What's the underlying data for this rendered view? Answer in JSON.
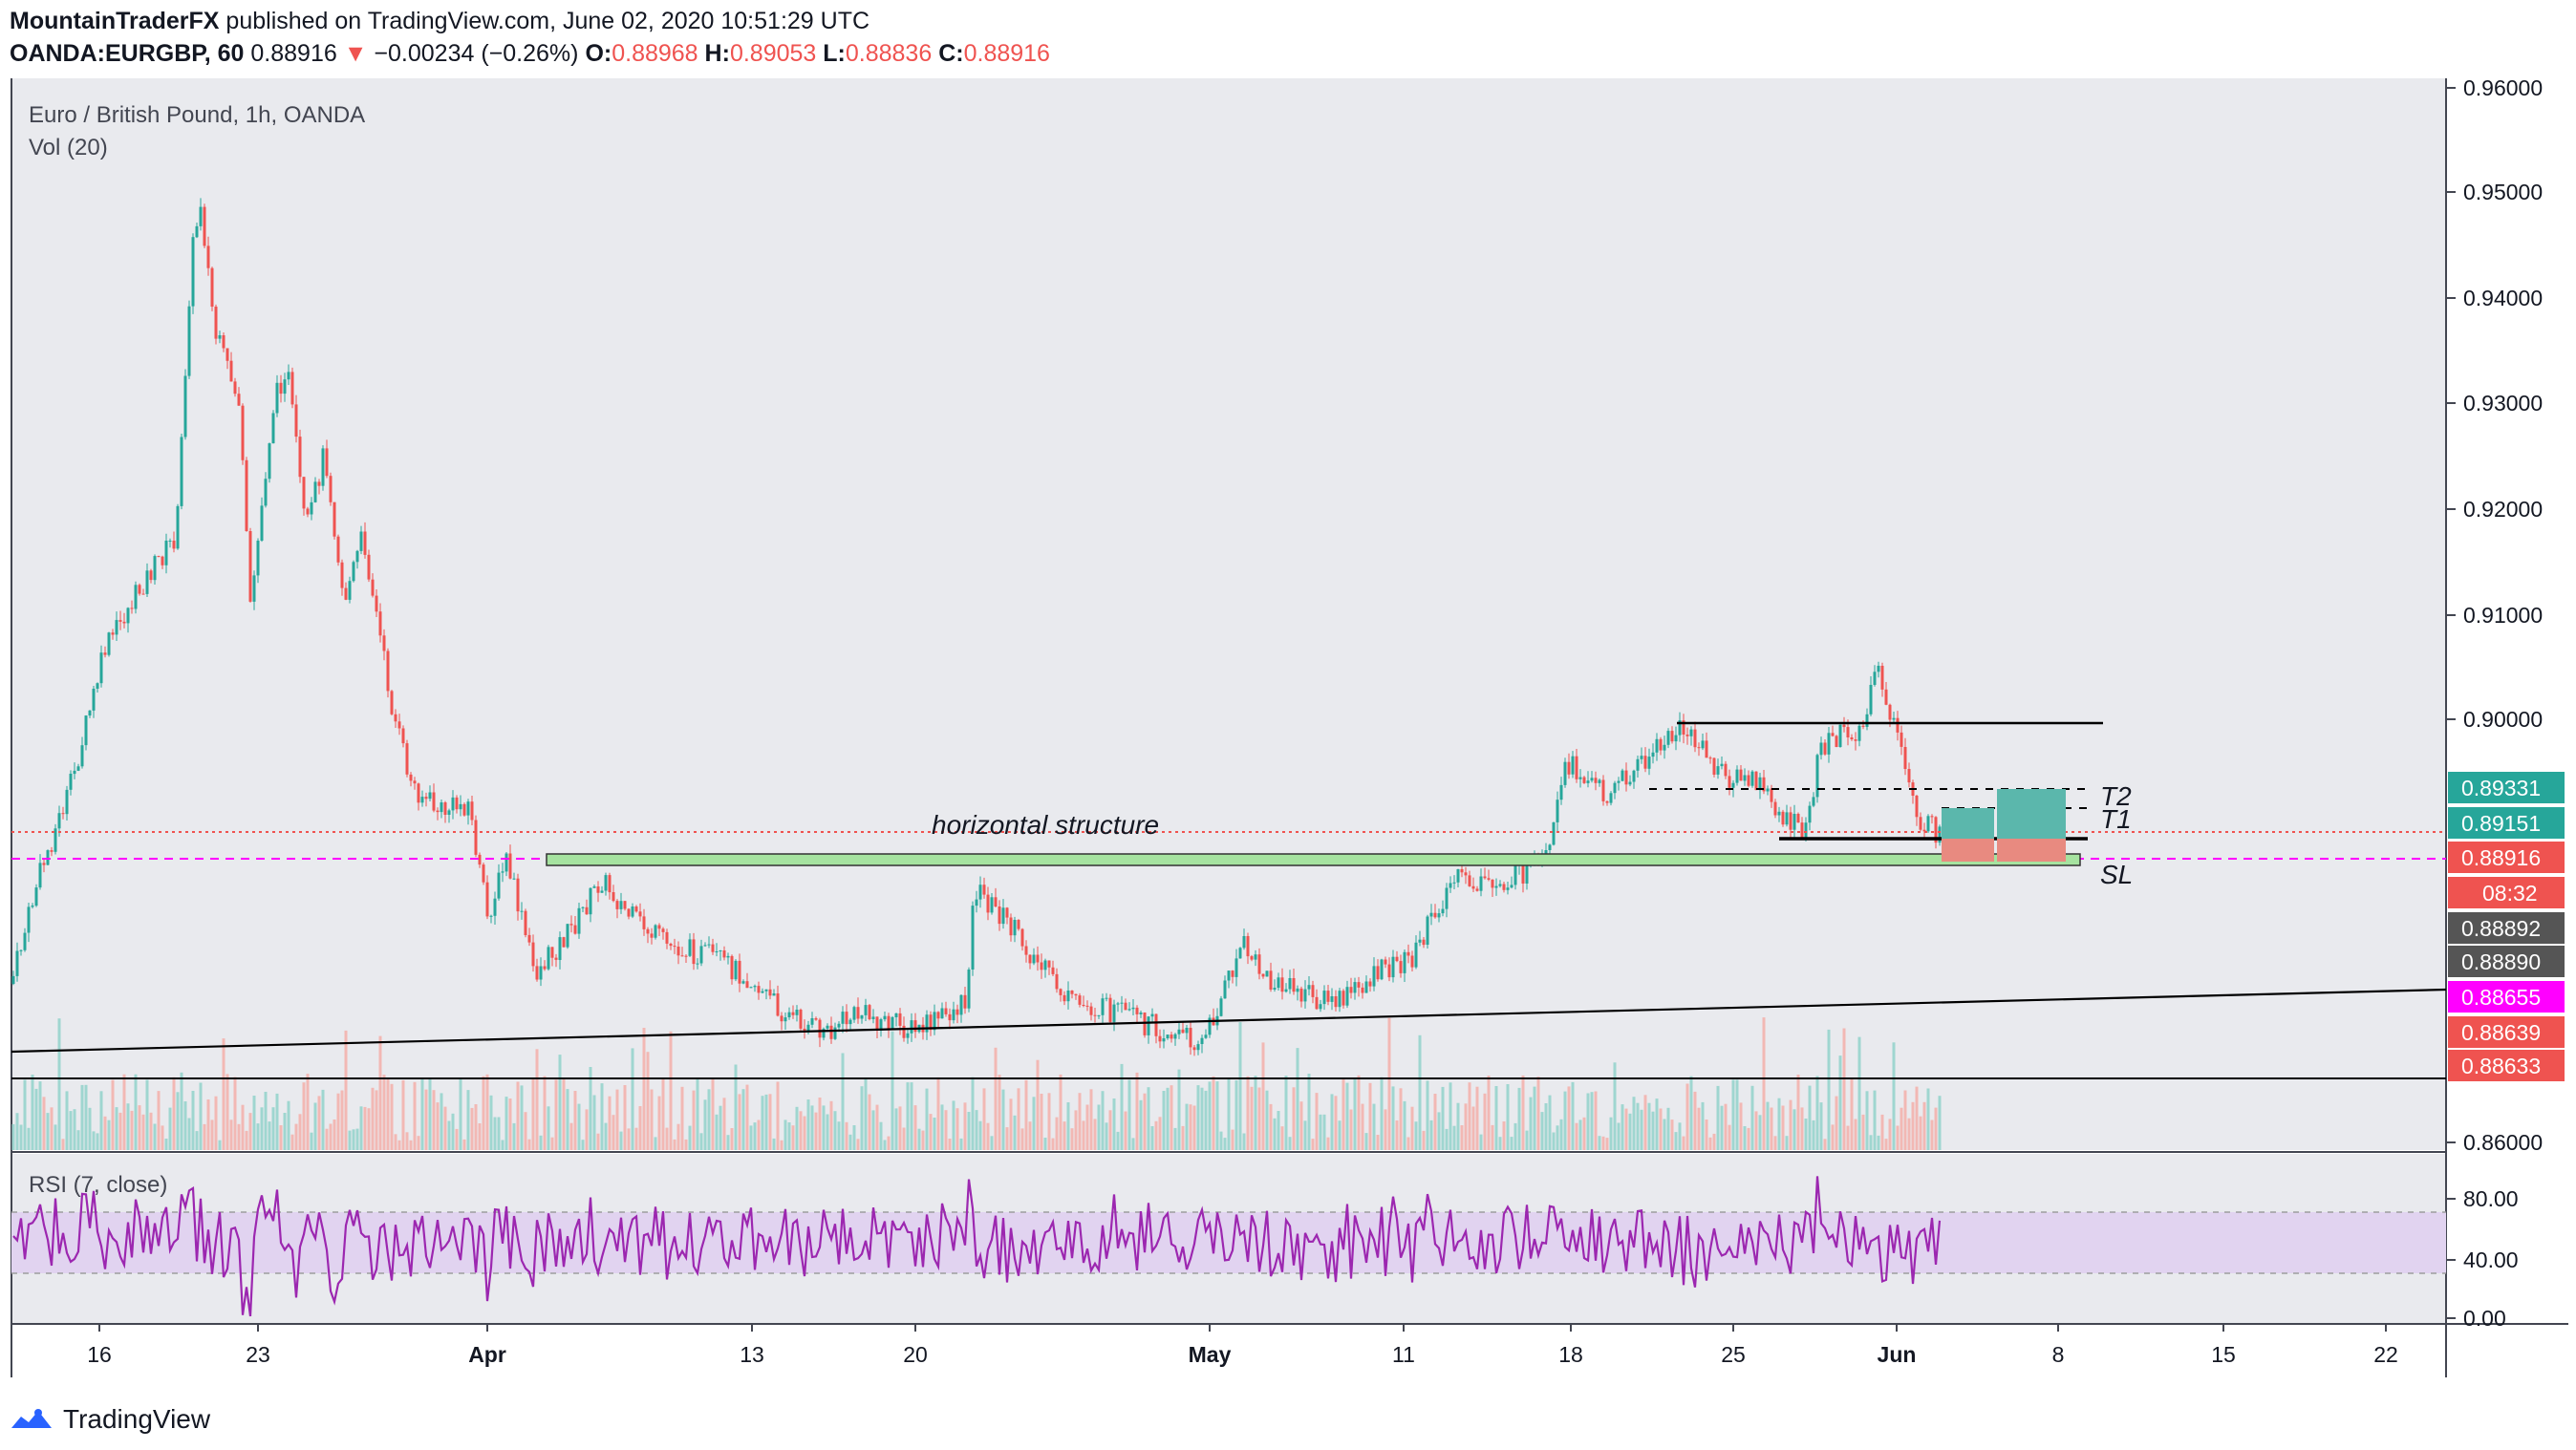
{
  "header": {
    "publisher": "MountainTraderFX",
    "published_text": "published on TradingView.com, June 02, 2020 10:51:29 UTC",
    "symbol": "OANDA:EURGBP, 60",
    "last": "0.88916",
    "change": "−0.00234 (−0.26%)",
    "o_label": "O:",
    "o_value": "0.88968",
    "h_label": "H:",
    "h_value": "0.89053",
    "l_label": "L:",
    "l_value": "0.88836",
    "c_label": "C:",
    "c_value": "0.88916"
  },
  "legend": {
    "title": "Euro / British Pound, 1h, OANDA",
    "volume": "Vol (20)",
    "rsi": "RSI (7, close)"
  },
  "annotations": {
    "structure": "horizontal structure",
    "t2": "T2",
    "t1": "T1",
    "sl": "SL"
  },
  "price_axis": {
    "ticks": [
      "0.96000",
      "0.95000",
      "0.94000",
      "0.93000",
      "0.92000",
      "0.91000",
      "0.90000",
      "0.86000"
    ],
    "tags": [
      {
        "text": "0.89331",
        "color": "#26a69a"
      },
      {
        "text": "0.89151",
        "color": "#26a69a"
      },
      {
        "text": "0.88916",
        "color": "#ef5350"
      },
      {
        "text": "08:32",
        "color": "#ef5350"
      },
      {
        "text": "0.88892",
        "color": "#555555"
      },
      {
        "text": "0.88890",
        "color": "#555555"
      },
      {
        "text": "0.88655",
        "color": "#ff00ff"
      },
      {
        "text": "0.88639",
        "color": "#ef5350"
      },
      {
        "text": "0.88633",
        "color": "#ef5350"
      }
    ]
  },
  "rsi_axis": {
    "ticks": [
      "80.00",
      "40.00",
      "0.00"
    ]
  },
  "time_axis": {
    "labels": [
      "16",
      "23",
      "Apr",
      "13",
      "20",
      "May",
      "11",
      "18",
      "25",
      "Jun",
      "8",
      "15",
      "22"
    ]
  },
  "colors": {
    "up": "#26a69a",
    "down": "#ef5350",
    "rsi": "#9c27b0",
    "rsi_band": "#e1d3f0",
    "bg": "#e9eaee",
    "target": "#5bb7ac",
    "stop": "#e88a80",
    "structure": "#a6e3a0",
    "magenta": "#ff00ff"
  },
  "footer": {
    "brand": "TradingView"
  }
}
